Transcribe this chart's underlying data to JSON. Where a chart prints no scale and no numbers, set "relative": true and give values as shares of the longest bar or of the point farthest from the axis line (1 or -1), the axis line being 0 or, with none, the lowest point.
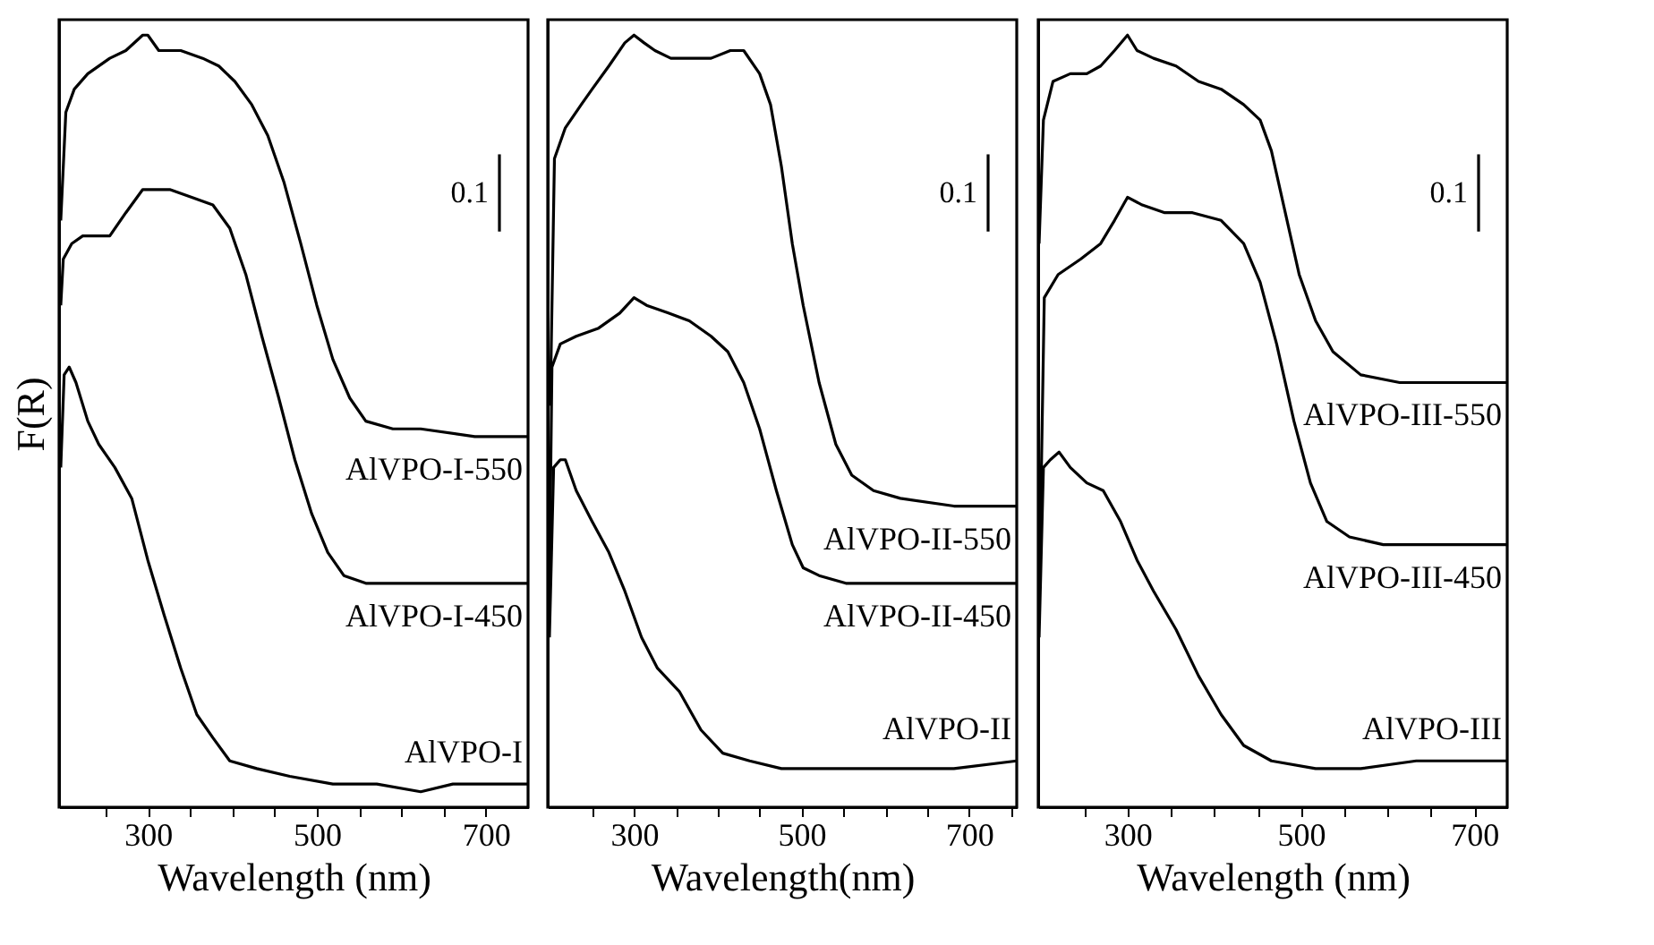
{
  "chart_data": [
    {
      "type": "line",
      "relative": true,
      "ylabel": "F(R)",
      "xlabel": "Wavelength (nm)",
      "annotations": [
        "0.1"
      ],
      "xlim": [
        195,
        750
      ],
      "xticks": [
        {
          "value": 250,
          "label": null
        },
        300,
        {
          "value": 350,
          "label": null
        },
        {
          "value": 400,
          "label": null
        },
        {
          "value": 450,
          "label": null
        },
        500,
        {
          "value": 550,
          "label": null
        },
        {
          "value": 600,
          "label": null
        },
        {
          "value": 650,
          "label": null
        },
        700
      ],
      "series": [
        {
          "name": "AlVPO-I-550",
          "color": "#000000",
          "x": [
            197,
            203,
            213,
            229,
            255,
            274,
            294,
            300,
            313,
            339,
            365,
            384,
            403,
            423,
            442,
            461,
            481,
            500,
            519,
            539,
            558,
            590,
            623,
            687,
            750
          ],
          "values": [
            0.76,
            0.9,
            0.93,
            0.95,
            0.97,
            0.98,
            1.0,
            1.0,
            0.98,
            0.98,
            0.97,
            0.96,
            0.94,
            0.91,
            0.87,
            0.81,
            0.73,
            0.65,
            0.58,
            0.53,
            0.5,
            0.49,
            0.49,
            0.48,
            0.48
          ]
        },
        {
          "name": "AlVPO-I-450",
          "color": "#000000",
          "x": [
            197,
            200,
            210,
            223,
            235,
            255,
            274,
            294,
            306,
            326,
            352,
            377,
            397,
            416,
            435,
            455,
            474,
            494,
            513,
            532,
            558,
            590,
            750
          ],
          "values": [
            0.65,
            0.71,
            0.73,
            0.74,
            0.74,
            0.74,
            0.77,
            0.8,
            0.8,
            0.8,
            0.79,
            0.78,
            0.75,
            0.69,
            0.61,
            0.53,
            0.45,
            0.38,
            0.33,
            0.3,
            0.29,
            0.29,
            0.29
          ]
        },
        {
          "name": "AlVPO-I",
          "color": "#000000",
          "x": [
            197,
            201,
            207,
            215,
            229,
            242,
            261,
            281,
            300,
            319,
            339,
            358,
            377,
            397,
            429,
            468,
            519,
            571,
            623,
            661,
            700,
            750
          ],
          "values": [
            0.44,
            0.56,
            0.57,
            0.55,
            0.5,
            0.47,
            0.44,
            0.4,
            0.32,
            0.25,
            0.18,
            0.12,
            0.09,
            0.06,
            0.05,
            0.04,
            0.03,
            0.03,
            0.02,
            0.03,
            0.03,
            0.03
          ]
        }
      ]
    },
    {
      "type": "line",
      "relative": true,
      "xlabel": "Wavelength(nm)",
      "annotations": [
        "0.1"
      ],
      "xlim": [
        197,
        757
      ],
      "xticks": [
        {
          "value": 250,
          "label": null
        },
        300,
        {
          "value": 350,
          "label": null
        },
        {
          "value": 400,
          "label": null
        },
        {
          "value": 450,
          "label": null
        },
        500,
        {
          "value": 550,
          "label": null
        },
        {
          "value": 600,
          "label": null
        },
        {
          "value": 650,
          "label": null
        },
        700,
        {
          "value": 750,
          "label": null
        }
      ],
      "series": [
        {
          "name": "AlVPO-II-550",
          "color": "#000000",
          "x": [
            200,
            205,
            218,
            237,
            250,
            270,
            289,
            300,
            312,
            325,
            344,
            366,
            392,
            415,
            431,
            450,
            463,
            476,
            489,
            502,
            521,
            541,
            560,
            586,
            618,
            682,
            741,
            757
          ],
          "values": [
            0.52,
            0.84,
            0.88,
            0.91,
            0.93,
            0.96,
            0.99,
            1.0,
            0.99,
            0.98,
            0.97,
            0.97,
            0.97,
            0.98,
            0.98,
            0.95,
            0.91,
            0.83,
            0.73,
            0.65,
            0.55,
            0.47,
            0.43,
            0.41,
            0.4,
            0.39,
            0.39,
            0.39
          ]
        },
        {
          "name": "AlVPO-II-450",
          "color": "#000000",
          "x": [
            199,
            202,
            212,
            231,
            257,
            283,
            300,
            315,
            341,
            366,
            392,
            412,
            431,
            450,
            470,
            489,
            502,
            521,
            553,
            618,
            757
          ],
          "values": [
            0.29,
            0.57,
            0.6,
            0.61,
            0.62,
            0.64,
            0.66,
            0.65,
            0.64,
            0.63,
            0.61,
            0.59,
            0.55,
            0.49,
            0.41,
            0.34,
            0.31,
            0.3,
            0.29,
            0.29,
            0.29
          ]
        },
        {
          "name": "AlVPO-II",
          "color": "#000000",
          "x": [
            199,
            204,
            212,
            218,
            231,
            250,
            270,
            289,
            309,
            328,
            354,
            380,
            406,
            438,
            476,
            528,
            618,
            682,
            757
          ],
          "values": [
            0.22,
            0.44,
            0.45,
            0.45,
            0.41,
            0.37,
            0.33,
            0.28,
            0.22,
            0.18,
            0.15,
            0.1,
            0.07,
            0.06,
            0.05,
            0.05,
            0.05,
            0.05,
            0.06
          ]
        }
      ]
    },
    {
      "type": "line",
      "relative": true,
      "xlabel": "Wavelength (nm)",
      "annotations": [
        "0.1"
      ],
      "xlim": [
        197,
        738
      ],
      "xticks": [
        {
          "value": 250,
          "label": null
        },
        300,
        {
          "value": 350,
          "label": null
        },
        {
          "value": 400,
          "label": null
        },
        {
          "value": 450,
          "label": null
        },
        500,
        {
          "value": 550,
          "label": null
        },
        {
          "value": 600,
          "label": null
        },
        {
          "value": 650,
          "label": null
        },
        700
      ],
      "series": [
        {
          "name": "AlVPO-III-550",
          "color": "#000000",
          "x": [
            198,
            203,
            214,
            234,
            253,
            269,
            285,
            300,
            311,
            330,
            356,
            382,
            408,
            434,
            453,
            466,
            482,
            498,
            517,
            537,
            569,
            614,
            679,
            738
          ],
          "values": [
            0.73,
            0.89,
            0.94,
            0.95,
            0.95,
            0.96,
            0.98,
            1.0,
            0.98,
            0.97,
            0.96,
            0.94,
            0.93,
            0.91,
            0.89,
            0.85,
            0.77,
            0.69,
            0.63,
            0.59,
            0.56,
            0.55,
            0.55,
            0.55
          ]
        },
        {
          "name": "AlVPO-III-450",
          "color": "#000000",
          "x": [
            198,
            204,
            220,
            246,
            269,
            285,
            300,
            317,
            343,
            375,
            408,
            434,
            453,
            472,
            492,
            511,
            530,
            556,
            595,
            646,
            738
          ],
          "values": [
            0.26,
            0.66,
            0.69,
            0.71,
            0.73,
            0.76,
            0.79,
            0.78,
            0.77,
            0.77,
            0.76,
            0.73,
            0.68,
            0.6,
            0.5,
            0.42,
            0.37,
            0.35,
            0.34,
            0.34,
            0.34
          ]
        },
        {
          "name": "AlVPO-III",
          "color": "#000000",
          "x": [
            198,
            203,
            211,
            221,
            234,
            253,
            272,
            292,
            311,
            330,
            356,
            382,
            408,
            434,
            466,
            517,
            569,
            633,
            698,
            738
          ],
          "values": [
            0.22,
            0.44,
            0.45,
            0.46,
            0.44,
            0.42,
            0.41,
            0.37,
            0.32,
            0.28,
            0.23,
            0.17,
            0.12,
            0.08,
            0.06,
            0.05,
            0.05,
            0.06,
            0.06,
            0.06
          ]
        }
      ]
    }
  ]
}
